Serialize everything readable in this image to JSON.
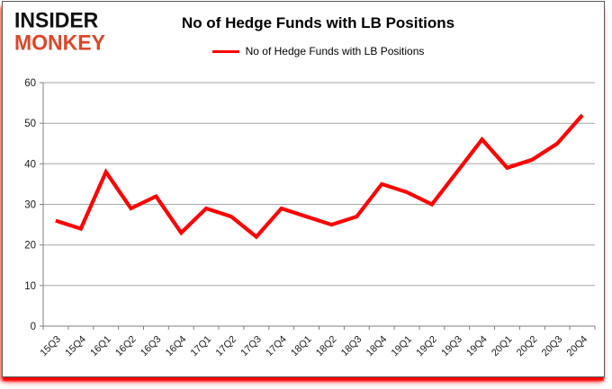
{
  "logo": {
    "line1": "INSIDER",
    "line2": "MONKEY"
  },
  "header": {
    "title": "No of Hedge Funds with LB Positions"
  },
  "legend": {
    "label": "No of Hedge Funds with LB Positions"
  },
  "colors": {
    "series": "#ff0000",
    "grid": "#a6a6a6",
    "axis": "#808080",
    "tick_text": "#1a1a1a",
    "logo_black": "#111111",
    "logo_red": "#d9472b",
    "shadow_red": "#ff0000"
  },
  "chart_data": {
    "type": "line",
    "title": "No of Hedge Funds with LB Positions",
    "xlabel": "",
    "ylabel": "",
    "ylim": [
      0,
      60
    ],
    "y_ticks": [
      0,
      10,
      20,
      30,
      40,
      50,
      60
    ],
    "grid": true,
    "legend_position": "top-center",
    "categories": [
      "15Q3",
      "15Q4",
      "16Q1",
      "16Q2",
      "16Q3",
      "16Q4",
      "17Q1",
      "17Q2",
      "17Q3",
      "17Q4",
      "18Q1",
      "18Q2",
      "18Q3",
      "18Q4",
      "19Q1",
      "19Q2",
      "19Q3",
      "19Q4",
      "20Q1",
      "20Q2",
      "20Q3",
      "20Q4"
    ],
    "series": [
      {
        "name": "No of Hedge Funds with LB Positions",
        "color": "#ff0000",
        "values": [
          26,
          24,
          38,
          29,
          32,
          23,
          29,
          27,
          22,
          29,
          27,
          25,
          27,
          35,
          33,
          30,
          38,
          46,
          39,
          41,
          45,
          52
        ]
      }
    ]
  }
}
